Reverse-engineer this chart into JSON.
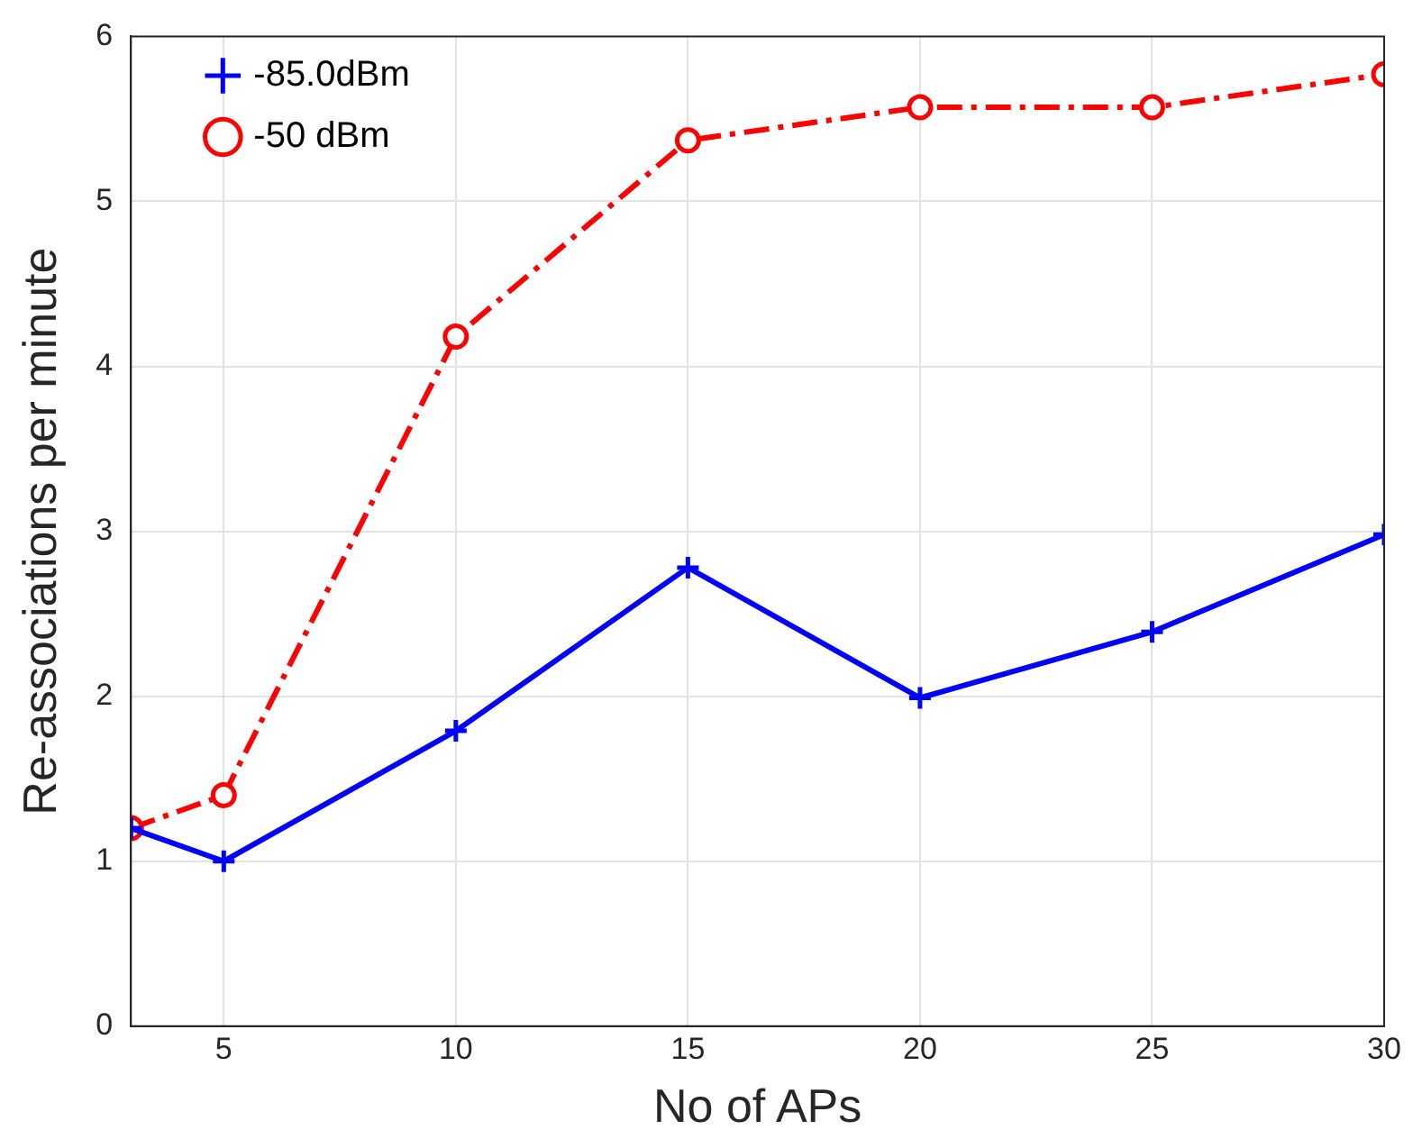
{
  "chart_data": {
    "type": "line",
    "xlabel": "No of APs",
    "ylabel": "Re-associations per minute",
    "x": [
      3,
      5,
      10,
      15,
      20,
      25,
      30
    ],
    "series": [
      {
        "name": "-85.0dBm",
        "color": "#0000ff",
        "values": [
          1.2,
          1.0,
          1.79,
          2.78,
          1.99,
          2.39,
          2.98
        ],
        "marker": "cross",
        "line_style": "solid"
      },
      {
        "name": "-50 dBm",
        "color": "#ff0000",
        "values": [
          1.2,
          1.4,
          4.18,
          5.37,
          5.57,
          5.57,
          5.77
        ],
        "marker": "circle",
        "line_style": "dashed"
      }
    ],
    "xlim": [
      3,
      30
    ],
    "xticks": [
      5,
      10,
      15,
      20,
      25,
      30
    ],
    "ylim": [
      0,
      6
    ],
    "yticks": [
      0,
      1,
      2,
      3,
      4,
      5,
      6
    ],
    "grid": true,
    "legend": "top left"
  }
}
